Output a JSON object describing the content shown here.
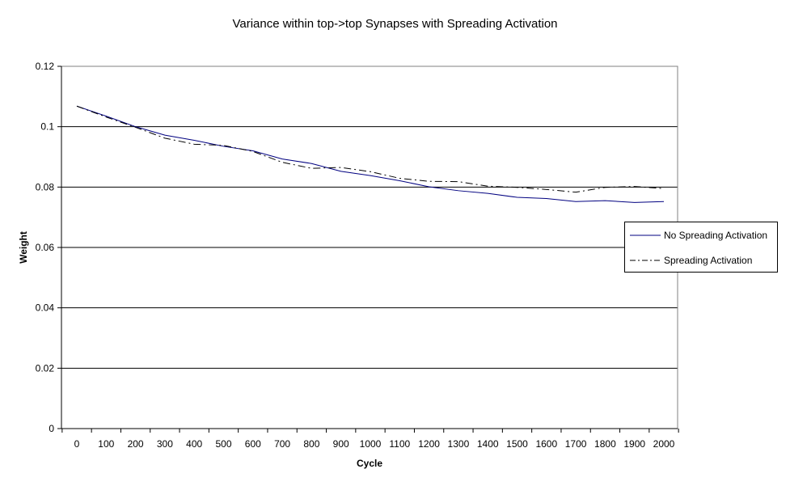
{
  "chart_data": {
    "type": "line",
    "title": "Variance within top->top Synapses with Spreading Activation",
    "xlabel": "Cycle",
    "ylabel": "Weight",
    "ylim": [
      0,
      0.12
    ],
    "yticks": [
      "0",
      "0.02",
      "0.04",
      "0.06",
      "0.08",
      "0.1",
      "0.12"
    ],
    "xticks": [
      "0",
      "100",
      "200",
      "300",
      "400",
      "500",
      "600",
      "700",
      "800",
      "900",
      "1000",
      "1100",
      "1200",
      "1300",
      "1400",
      "1500",
      "1600",
      "1700",
      "1800",
      "1900",
      "2000"
    ],
    "grid": "horizontal",
    "legend_position": "right",
    "series": [
      {
        "name": "No Spreading Activation",
        "style": "solid",
        "color": "#000080",
        "x": [
          0,
          100,
          200,
          300,
          400,
          500,
          600,
          700,
          800,
          900,
          1000,
          1100,
          1200,
          1300,
          1400,
          1500,
          1600,
          1700,
          1800,
          1900,
          2000
        ],
        "y": [
          0.1068,
          0.1035,
          0.1,
          0.0972,
          0.0955,
          0.0935,
          0.092,
          0.0893,
          0.0878,
          0.0852,
          0.0838,
          0.0821,
          0.0801,
          0.0788,
          0.0779,
          0.0766,
          0.0762,
          0.0752,
          0.0755,
          0.0749,
          0.0752
        ]
      },
      {
        "name": "Spreading Activation",
        "style": "dashdot",
        "color": "#000000",
        "x": [
          0,
          100,
          200,
          300,
          400,
          500,
          600,
          700,
          800,
          900,
          1000,
          1100,
          1200,
          1300,
          1400,
          1500,
          1600,
          1700,
          1800,
          1900,
          2000
        ],
        "y": [
          0.1068,
          0.1032,
          0.0998,
          0.0962,
          0.0942,
          0.0938,
          0.0918,
          0.0882,
          0.0862,
          0.0865,
          0.0851,
          0.0829,
          0.0819,
          0.0818,
          0.0803,
          0.0799,
          0.0792,
          0.0783,
          0.0799,
          0.0802,
          0.0795
        ]
      }
    ]
  }
}
